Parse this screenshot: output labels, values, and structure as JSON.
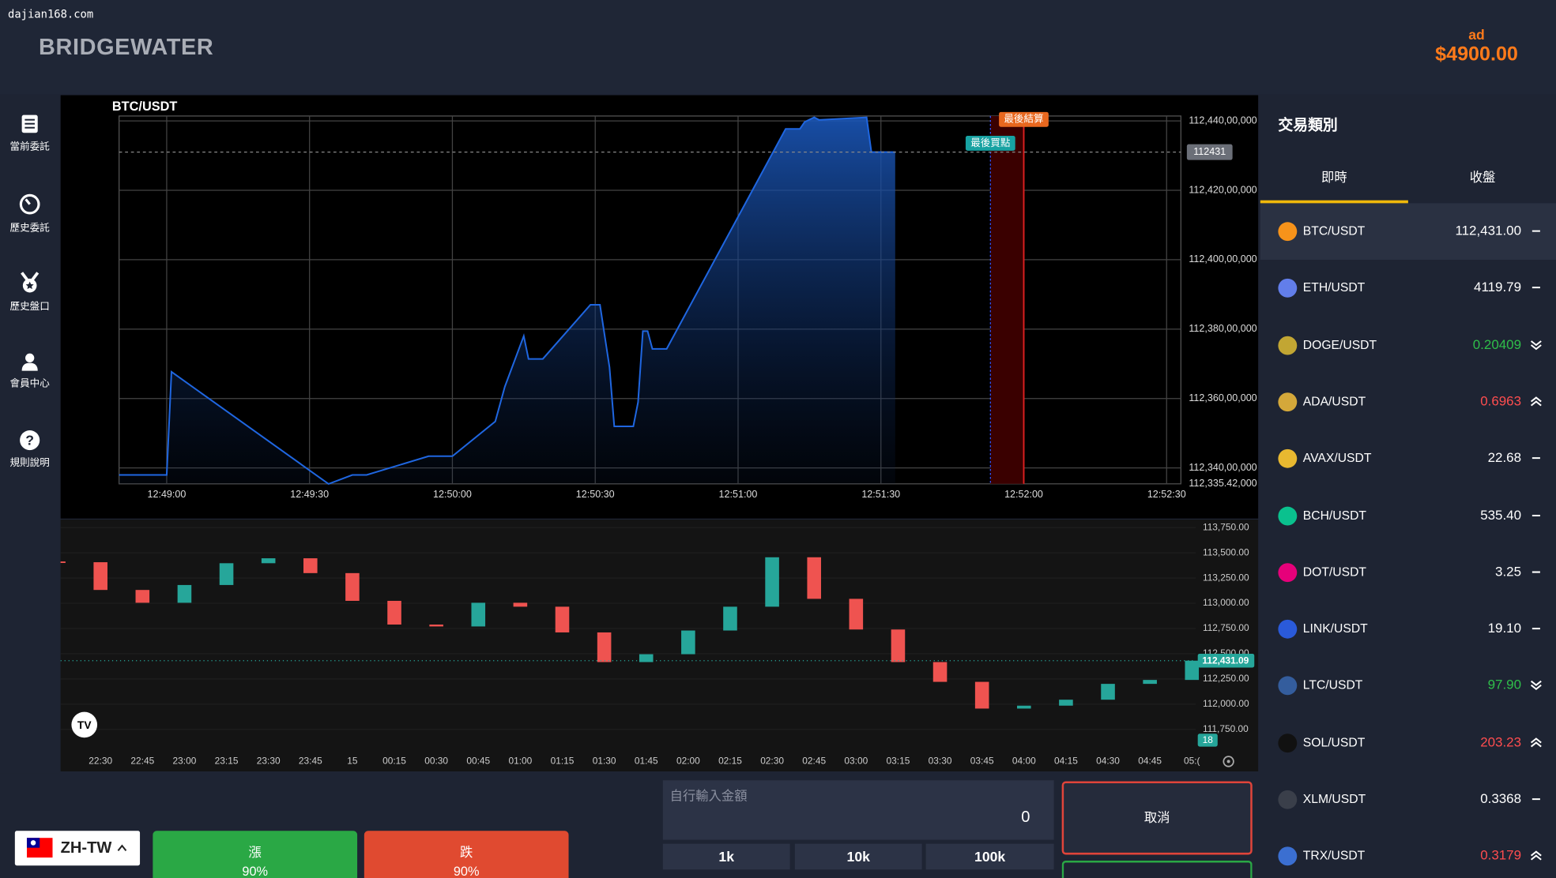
{
  "watermark": "dajian168.com",
  "header": {
    "brand": "BRIDGEWATER",
    "balance_label": "ad",
    "balance": "$4900.00"
  },
  "sidebar": {
    "items": [
      "當前委託",
      "歷史委託",
      "歷史盤口",
      "會員中心",
      "規則說明"
    ]
  },
  "chart_data": [
    {
      "type": "line",
      "title": "BTC/USDT",
      "x": [
        "12:48:50",
        "12:49:00",
        "12:49:01",
        "12:49:34",
        "12:49:39",
        "12:49:42",
        "12:49:55",
        "12:50:00",
        "12:50:09",
        "12:50:11",
        "12:50:15",
        "12:50:16",
        "12:50:19",
        "12:50:29",
        "12:50:31",
        "12:50:33",
        "12:50:34",
        "12:50:38",
        "12:50:39",
        "12:50:40",
        "12:50:41",
        "12:50:42",
        "12:50:45",
        "12:51:10",
        "12:51:13",
        "12:51:14",
        "12:51:16",
        "12:51:17",
        "12:51:27",
        "12:51:28",
        "12:51:33"
      ],
      "series": [
        {
          "color": "#1f66e0",
          "values": [
            112338,
            112338,
            112367.7,
            112335.4,
            112338,
            112338,
            112343.4,
            112343.4,
            112353.4,
            112363.4,
            112378,
            112371.4,
            112371.4,
            112387,
            112387,
            112369,
            112352,
            112352,
            112359,
            112379.4,
            112379.4,
            112374.3,
            112374.3,
            112437.7,
            112437.7,
            112439.7,
            112441,
            112440.3,
            112441,
            112431,
            112431
          ]
        }
      ],
      "xlim": [
        "12:48:50",
        "12:52:33"
      ],
      "xticks": [
        "12:49:00",
        "12:49:30",
        "12:50:00",
        "12:50:30",
        "12:51:00",
        "12:51:30",
        "12:52:00",
        "12:52:30"
      ],
      "ylim": [
        112335.42,
        112441.4
      ],
      "yticks": [
        {
          "value": 112335.42,
          "label": "112,335.42,000"
        },
        {
          "value": 112340,
          "label": "112,340,00,000"
        },
        {
          "value": 112360,
          "label": "112,360,00,000"
        },
        {
          "value": 112380,
          "label": "112,380,00,000"
        },
        {
          "value": 112400,
          "label": "112,400,00,000"
        },
        {
          "value": 112420,
          "label": "112,420,00,000"
        },
        {
          "value": 112440,
          "label": "112,440,00,000"
        }
      ],
      "grid": true,
      "current_price": {
        "value": 112431,
        "label": "112431"
      },
      "last_buy": {
        "label": "最後買點",
        "x": "12:51:53",
        "color": "#17a2a2"
      },
      "settlement": {
        "label": "最後結算",
        "x": "12:52:00",
        "color": "#e8681f"
      }
    },
    {
      "type": "candlestick",
      "categories": [
        null,
        "22:30",
        "22:45",
        "23:00",
        "23:15",
        "23:30",
        "23:45",
        "15",
        "00:15",
        "00:30",
        "00:45",
        "01:00",
        "01:15",
        "01:30",
        "01:45",
        "02:00",
        "02:15",
        "02:30",
        "02:45",
        "03:00",
        "03:15",
        "03:30",
        "03:45",
        "04:00",
        "04:15",
        "04:30",
        "04:45",
        "05:("
      ],
      "values": [
        113407,
        113132,
        113005,
        113181,
        113397,
        113446,
        113299,
        113024,
        112789,
        112770,
        113005,
        112966,
        112711,
        112417,
        112495,
        112730,
        112966,
        113456,
        113044,
        112740,
        112417,
        112221,
        111956,
        111985,
        112044,
        112201,
        112240,
        112431.09
      ],
      "ylim": [
        111530,
        113830
      ],
      "yticks": [
        {
          "value": 111750,
          "label": "111,750.00"
        },
        {
          "value": 112000,
          "label": "112,000.00"
        },
        {
          "value": 112250,
          "label": "112,250.00"
        },
        {
          "value": 112500,
          "label": "112,500.00"
        },
        {
          "value": 112750,
          "label": "112,750.00"
        },
        {
          "value": 113000,
          "label": "113,000.00"
        },
        {
          "value": 113250,
          "label": "113,250.00"
        },
        {
          "value": 113500,
          "label": "113,500.00"
        },
        {
          "value": 113750,
          "label": "113,750.00"
        }
      ],
      "last_price": {
        "value": 112431.09,
        "label": "112,431.09"
      },
      "volume_tag": "18",
      "colors": {
        "up": "#26a69a",
        "down": "#ef5350"
      }
    }
  ],
  "market": {
    "title": "交易類別",
    "tabs": [
      "即時",
      "收盤"
    ],
    "pairs": [
      {
        "name": "BTC/USDT",
        "price": "112,431.00",
        "trend": "flat",
        "color": "#ffffff",
        "icon_color": "#f7931a"
      },
      {
        "name": "ETH/USDT",
        "price": "4119.79",
        "trend": "flat",
        "color": "#ffffff",
        "icon_color": "#627eea"
      },
      {
        "name": "DOGE/USDT",
        "price": "0.20409",
        "trend": "down",
        "color": "#2fbf4a",
        "icon_color": "#c2a633"
      },
      {
        "name": "ADA/USDT",
        "price": "0.6963",
        "trend": "up",
        "color": "#ff4d4f",
        "icon_color": "#d4a83a"
      },
      {
        "name": "AVAX/USDT",
        "price": "22.68",
        "trend": "flat",
        "color": "#ffffff",
        "icon_color": "#e8b830"
      },
      {
        "name": "BCH/USDT",
        "price": "535.40",
        "trend": "flat",
        "color": "#ffffff",
        "icon_color": "#0ac18e"
      },
      {
        "name": "DOT/USDT",
        "price": "3.25",
        "trend": "flat",
        "color": "#ffffff",
        "icon_color": "#e6007a"
      },
      {
        "name": "LINK/USDT",
        "price": "19.10",
        "trend": "flat",
        "color": "#ffffff",
        "icon_color": "#2a5ada"
      },
      {
        "name": "LTC/USDT",
        "price": "97.90",
        "trend": "down",
        "color": "#2fbf4a",
        "icon_color": "#345d9d"
      },
      {
        "name": "SOL/USDT",
        "price": "203.23",
        "trend": "up",
        "color": "#ff4d4f",
        "icon_color": "#111111"
      },
      {
        "name": "XLM/USDT",
        "price": "0.3368",
        "trend": "flat",
        "color": "#ffffff",
        "icon_color": "#3a3f4a"
      },
      {
        "name": "TRX/USDT",
        "price": "0.3179",
        "trend": "up",
        "color": "#ff4d4f",
        "icon_color": "#3b6fd1"
      }
    ]
  },
  "order": {
    "up": {
      "label": "漲",
      "payout": "90%"
    },
    "down": {
      "label": "跌",
      "payout": "90%"
    },
    "amount_placeholder": "自行輸入金額",
    "amount": "0",
    "quick_amounts": [
      "1k",
      "10k",
      "100k"
    ],
    "cancel": "取消"
  },
  "language": "ZH-TW"
}
